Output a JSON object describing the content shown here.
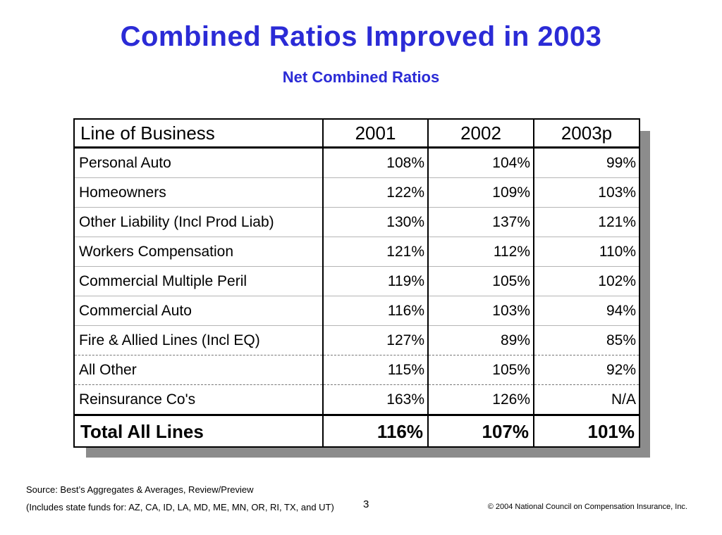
{
  "title": "Combined Ratios Improved in 2003",
  "subtitle": "Net Combined Ratios",
  "table": {
    "headers": [
      "Line of Business",
      "2001",
      "2002",
      "2003p"
    ],
    "rows": [
      {
        "name": "Personal Auto",
        "v2001": "108%",
        "v2002": "104%",
        "v2003": "99%"
      },
      {
        "name": "Homeowners",
        "v2001": "122%",
        "v2002": "109%",
        "v2003": "103%"
      },
      {
        "name": "Other Liability (Incl Prod Liab)",
        "v2001": "130%",
        "v2002": "137%",
        "v2003": "121%"
      },
      {
        "name": "Workers Compensation",
        "v2001": "121%",
        "v2002": "112%",
        "v2003": "110%"
      },
      {
        "name": "Commercial Multiple Peril",
        "v2001": "119%",
        "v2002": "105%",
        "v2003": "102%"
      },
      {
        "name": "Commercial Auto",
        "v2001": "116%",
        "v2002": "103%",
        "v2003": "94%"
      },
      {
        "name": "Fire & Allied Lines (Incl EQ)",
        "v2001": "127%",
        "v2002": "89%",
        "v2003": "85%"
      },
      {
        "name": "All Other",
        "v2001": "115%",
        "v2002": "105%",
        "v2003": "92%"
      },
      {
        "name": "Reinsurance Co's",
        "v2001": "163%",
        "v2002": "126%",
        "v2003": "N/A"
      }
    ],
    "total": {
      "name": "Total All Lines",
      "v2001": "116%",
      "v2002": "107%",
      "v2003": "101%"
    }
  },
  "footer": {
    "source": "Source: Best’s Aggregates & Averages, Review/Preview",
    "includes": "(Includes state funds for: AZ, CA, ID, LA, MD, ME, MN, OR, RI, TX, and UT)",
    "page_number": "3",
    "copyright": "© 2004 National Council on Compensation Insurance, Inc."
  },
  "colors": {
    "title": "#2b2bd6",
    "shadow": "#8c8c8c"
  }
}
